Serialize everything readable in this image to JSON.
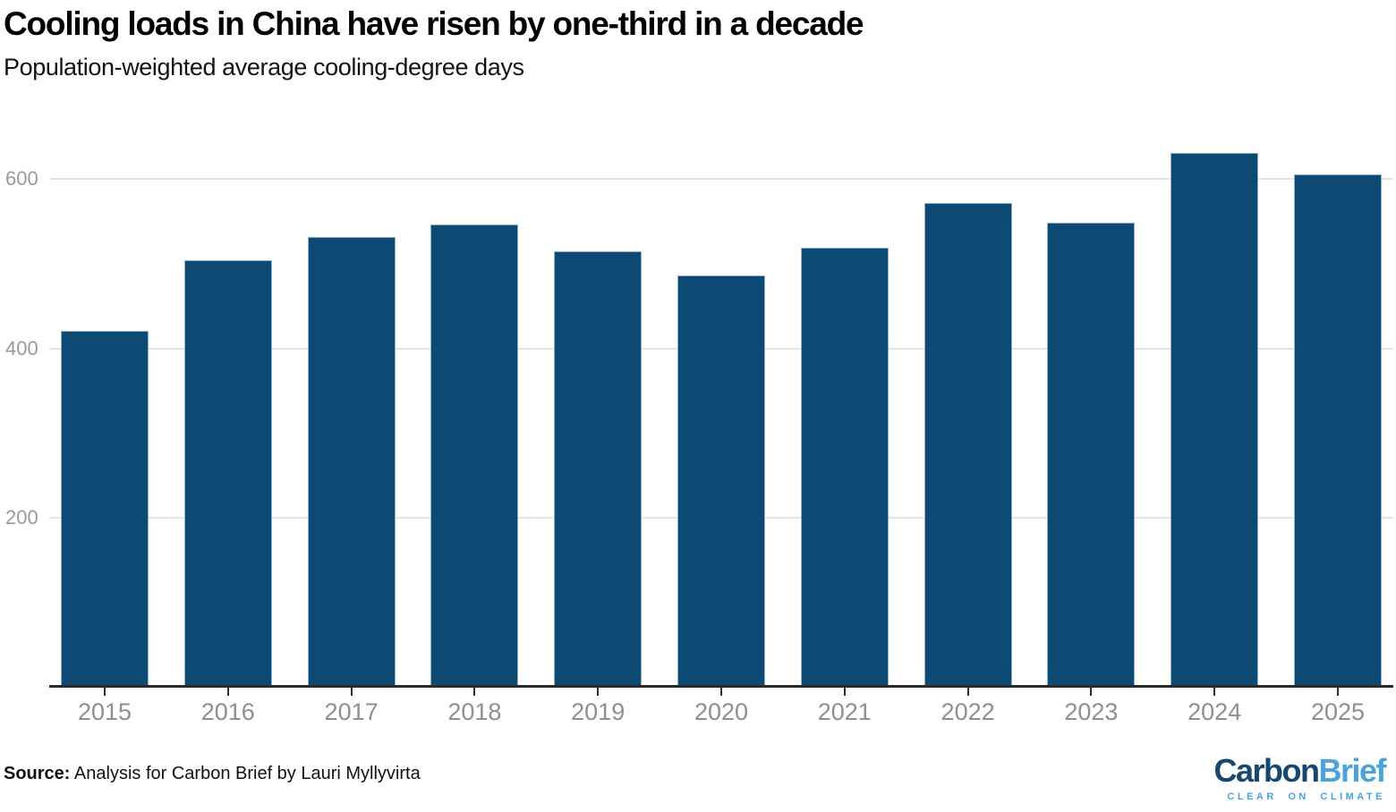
{
  "header": {
    "title": "Cooling loads in China have risen by one-third in a decade",
    "subtitle": "Population-weighted average cooling-degree days"
  },
  "chart_data": {
    "type": "bar",
    "title": "Cooling loads in China have risen by one-third in a decade",
    "subtitle": "Population-weighted average cooling-degree days",
    "categories": [
      "2015",
      "2016",
      "2017",
      "2018",
      "2019",
      "2020",
      "2021",
      "2022",
      "2023",
      "2024",
      "2025"
    ],
    "values": [
      420,
      503,
      530,
      545,
      514,
      485,
      518,
      570,
      547,
      630,
      604
    ],
    "xlabel": "",
    "ylabel": "Population-weighted average cooling-degree days",
    "yticks": [
      200,
      400,
      600
    ],
    "ylim": [
      0,
      650
    ],
    "grid": "horizontal-light",
    "legend": "none",
    "bar_color": "#0d4a73",
    "bar_edge_color": "#a5c4db",
    "axis_line_color": "#2b2b2b",
    "tick_label_color": "#8f8f8f",
    "ytick_label_color": "#999999",
    "gridline_color": "#e4e4e4"
  },
  "footer": {
    "source_label": "Source:",
    "source_text": " Analysis for Carbon Brief by Lauri Myllyvirta"
  },
  "logo": {
    "brand_part1": "Carbon",
    "brand_part2": "Brief",
    "tagline": "CLEAR ON CLIMATE",
    "color_dark": "#17466f",
    "color_light": "#4aa3da"
  }
}
